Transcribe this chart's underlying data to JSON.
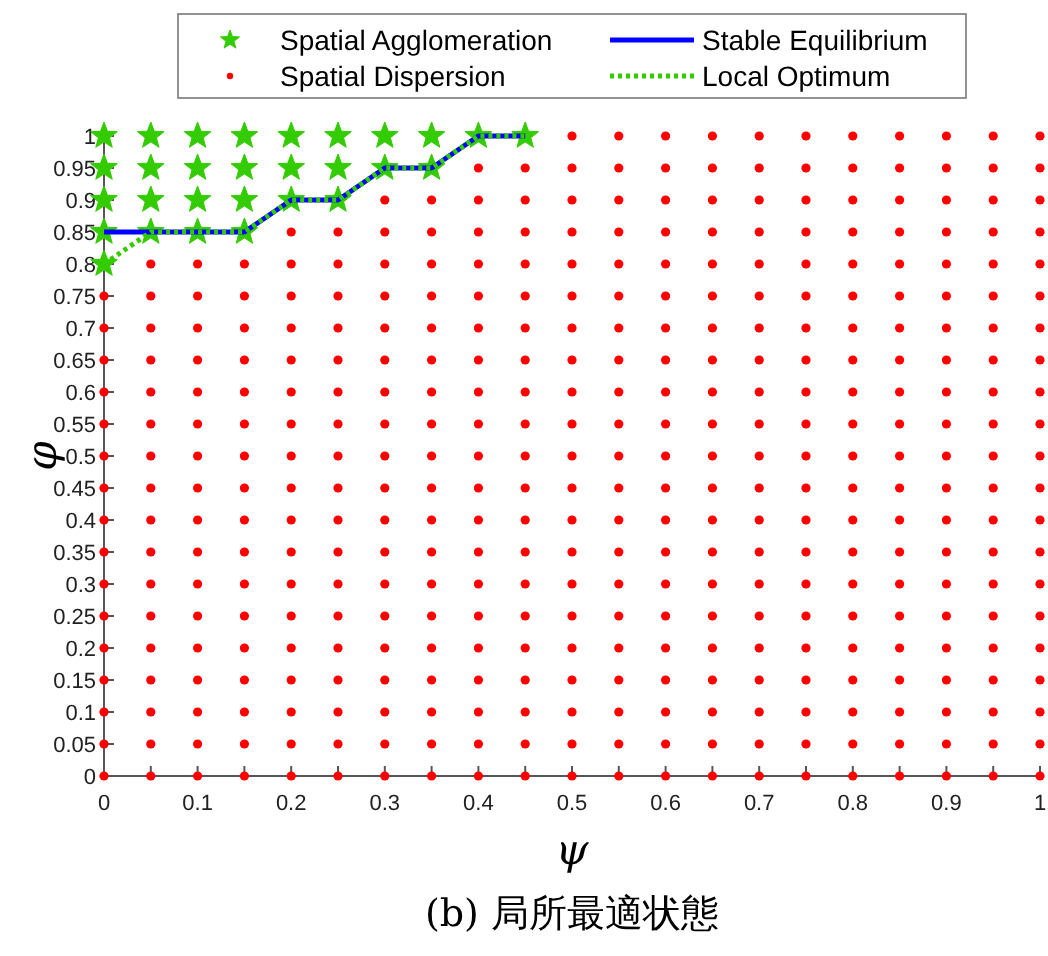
{
  "chart_data": {
    "type": "scatter",
    "title": "(b) 局所最適状態",
    "xlabel": "ψ",
    "ylabel": "φ",
    "xlim": [
      0,
      1
    ],
    "ylim": [
      0,
      1
    ],
    "xticks": [
      0,
      {
        "value": 0.05,
        "label": null
      },
      0.1,
      {
        "value": 0.15,
        "label": null
      },
      0.2,
      {
        "value": 0.25,
        "label": null
      },
      0.3,
      {
        "value": 0.35,
        "label": null
      },
      0.4,
      {
        "value": 0.45,
        "label": null
      },
      0.5,
      {
        "value": 0.55,
        "label": null
      },
      0.6,
      {
        "value": 0.65,
        "label": null
      },
      0.7,
      {
        "value": 0.75,
        "label": null
      },
      0.8,
      {
        "value": 0.85,
        "label": null
      },
      0.9,
      {
        "value": 0.95,
        "label": null
      },
      1
    ],
    "yticks": [
      0,
      0.05,
      0.1,
      0.15,
      0.2,
      0.25,
      0.3,
      0.35,
      0.4,
      0.45,
      0.5,
      0.55,
      0.6,
      0.65,
      0.7,
      0.75,
      0.8,
      0.85,
      0.9,
      0.95,
      1
    ],
    "legend": "top",
    "series": [
      {
        "name": "Spatial Agglomeration",
        "type": "scatter",
        "marker": "star",
        "color": "#33cc00",
        "x": [
          0,
          0,
          0,
          0,
          0,
          0.05,
          0.05,
          0.05,
          0.05,
          0.1,
          0.1,
          0.1,
          0.1,
          0.15,
          0.15,
          0.15,
          0.15,
          0.2,
          0.2,
          0.2,
          0.25,
          0.25,
          0.25,
          0.3,
          0.3,
          0.35,
          0.35,
          0.4,
          0.45
        ],
        "values": [
          0.8,
          0.85,
          0.9,
          0.95,
          1,
          0.85,
          0.9,
          0.95,
          1,
          0.85,
          0.9,
          0.95,
          1,
          0.85,
          0.9,
          0.95,
          1,
          0.9,
          0.95,
          1,
          0.9,
          0.95,
          1,
          0.95,
          1,
          0.95,
          1,
          1,
          1
        ]
      },
      {
        "name": "Spatial Dispersion",
        "type": "scatter",
        "marker": "circle",
        "color": "#ff0000",
        "x": [
          0,
          0,
          0,
          0,
          0,
          0,
          0,
          0,
          0,
          0,
          0,
          0,
          0,
          0,
          0,
          0,
          0.05,
          0.05,
          0.05,
          0.05,
          0.05,
          0.05,
          0.05,
          0.05,
          0.05,
          0.05,
          0.05,
          0.05,
          0.05,
          0.05,
          0.05,
          0.05,
          0.05,
          0.1,
          0.1,
          0.1,
          0.1,
          0.1,
          0.1,
          0.1,
          0.1,
          0.1,
          0.1,
          0.1,
          0.1,
          0.1,
          0.1,
          0.1,
          0.1,
          0.1,
          0.15,
          0.15,
          0.15,
          0.15,
          0.15,
          0.15,
          0.15,
          0.15,
          0.15,
          0.15,
          0.15,
          0.15,
          0.15,
          0.15,
          0.15,
          0.15,
          0.15,
          0.2,
          0.2,
          0.2,
          0.2,
          0.2,
          0.2,
          0.2,
          0.2,
          0.2,
          0.2,
          0.2,
          0.2,
          0.2,
          0.2,
          0.2,
          0.2,
          0.2,
          0.2,
          0.25,
          0.25,
          0.25,
          0.25,
          0.25,
          0.25,
          0.25,
          0.25,
          0.25,
          0.25,
          0.25,
          0.25,
          0.25,
          0.25,
          0.25,
          0.25,
          0.25,
          0.25,
          0.3,
          0.3,
          0.3,
          0.3,
          0.3,
          0.3,
          0.3,
          0.3,
          0.3,
          0.3,
          0.3,
          0.3,
          0.3,
          0.3,
          0.3,
          0.3,
          0.3,
          0.3,
          0.3,
          0.35,
          0.35,
          0.35,
          0.35,
          0.35,
          0.35,
          0.35,
          0.35,
          0.35,
          0.35,
          0.35,
          0.35,
          0.35,
          0.35,
          0.35,
          0.35,
          0.35,
          0.35,
          0.35,
          0.4,
          0.4,
          0.4,
          0.4,
          0.4,
          0.4,
          0.4,
          0.4,
          0.4,
          0.4,
          0.4,
          0.4,
          0.4,
          0.4,
          0.4,
          0.4,
          0.4,
          0.4,
          0.4,
          0.4,
          0.45,
          0.45,
          0.45,
          0.45,
          0.45,
          0.45,
          0.45,
          0.45,
          0.45,
          0.45,
          0.45,
          0.45,
          0.45,
          0.45,
          0.45,
          0.45,
          0.45,
          0.45,
          0.45,
          0.45,
          0.5,
          0.5,
          0.5,
          0.5,
          0.5,
          0.5,
          0.5,
          0.5,
          0.5,
          0.5,
          0.5,
          0.5,
          0.5,
          0.5,
          0.5,
          0.5,
          0.5,
          0.5,
          0.5,
          0.5,
          0.5,
          0.55,
          0.55,
          0.55,
          0.55,
          0.55,
          0.55,
          0.55,
          0.55,
          0.55,
          0.55,
          0.55,
          0.55,
          0.55,
          0.55,
          0.55,
          0.55,
          0.55,
          0.55,
          0.55,
          0.55,
          0.55,
          0.6,
          0.6,
          0.6,
          0.6,
          0.6,
          0.6,
          0.6,
          0.6,
          0.6,
          0.6,
          0.6,
          0.6,
          0.6,
          0.6,
          0.6,
          0.6,
          0.6,
          0.6,
          0.6,
          0.6,
          0.6,
          0.65,
          0.65,
          0.65,
          0.65,
          0.65,
          0.65,
          0.65,
          0.65,
          0.65,
          0.65,
          0.65,
          0.65,
          0.65,
          0.65,
          0.65,
          0.65,
          0.65,
          0.65,
          0.65,
          0.65,
          0.65,
          0.7,
          0.7,
          0.7,
          0.7,
          0.7,
          0.7,
          0.7,
          0.7,
          0.7,
          0.7,
          0.7,
          0.7,
          0.7,
          0.7,
          0.7,
          0.7,
          0.7,
          0.7,
          0.7,
          0.7,
          0.7,
          0.75,
          0.75,
          0.75,
          0.75,
          0.75,
          0.75,
          0.75,
          0.75,
          0.75,
          0.75,
          0.75,
          0.75,
          0.75,
          0.75,
          0.75,
          0.75,
          0.75,
          0.75,
          0.75,
          0.75,
          0.75,
          0.8,
          0.8,
          0.8,
          0.8,
          0.8,
          0.8,
          0.8,
          0.8,
          0.8,
          0.8,
          0.8,
          0.8,
          0.8,
          0.8,
          0.8,
          0.8,
          0.8,
          0.8,
          0.8,
          0.8,
          0.8,
          0.85,
          0.85,
          0.85,
          0.85,
          0.85,
          0.85,
          0.85,
          0.85,
          0.85,
          0.85,
          0.85,
          0.85,
          0.85,
          0.85,
          0.85,
          0.85,
          0.85,
          0.85,
          0.85,
          0.85,
          0.85,
          0.9,
          0.9,
          0.9,
          0.9,
          0.9,
          0.9,
          0.9,
          0.9,
          0.9,
          0.9,
          0.9,
          0.9,
          0.9,
          0.9,
          0.9,
          0.9,
          0.9,
          0.9,
          0.9,
          0.9,
          0.9,
          0.95,
          0.95,
          0.95,
          0.95,
          0.95,
          0.95,
          0.95,
          0.95,
          0.95,
          0.95,
          0.95,
          0.95,
          0.95,
          0.95,
          0.95,
          0.95,
          0.95,
          0.95,
          0.95,
          0.95,
          0.95,
          1,
          1,
          1,
          1,
          1,
          1,
          1,
          1,
          1,
          1,
          1,
          1,
          1,
          1,
          1,
          1,
          1,
          1,
          1,
          1,
          1
        ],
        "values": [
          0,
          0.05,
          0.1,
          0.15,
          0.2,
          0.25,
          0.3,
          0.35,
          0.4,
          0.45,
          0.5,
          0.55,
          0.6,
          0.65,
          0.7,
          0.75,
          0,
          0.05,
          0.1,
          0.15,
          0.2,
          0.25,
          0.3,
          0.35,
          0.4,
          0.45,
          0.5,
          0.55,
          0.6,
          0.65,
          0.7,
          0.75,
          0.8,
          0,
          0.05,
          0.1,
          0.15,
          0.2,
          0.25,
          0.3,
          0.35,
          0.4,
          0.45,
          0.5,
          0.55,
          0.6,
          0.65,
          0.7,
          0.75,
          0.8,
          0,
          0.05,
          0.1,
          0.15,
          0.2,
          0.25,
          0.3,
          0.35,
          0.4,
          0.45,
          0.5,
          0.55,
          0.6,
          0.65,
          0.7,
          0.75,
          0.8,
          0,
          0.05,
          0.1,
          0.15,
          0.2,
          0.25,
          0.3,
          0.35,
          0.4,
          0.45,
          0.5,
          0.55,
          0.6,
          0.65,
          0.7,
          0.75,
          0.8,
          0.85,
          0,
          0.05,
          0.1,
          0.15,
          0.2,
          0.25,
          0.3,
          0.35,
          0.4,
          0.45,
          0.5,
          0.55,
          0.6,
          0.65,
          0.7,
          0.75,
          0.8,
          0.85,
          0,
          0.05,
          0.1,
          0.15,
          0.2,
          0.25,
          0.3,
          0.35,
          0.4,
          0.45,
          0.5,
          0.55,
          0.6,
          0.65,
          0.7,
          0.75,
          0.8,
          0.85,
          0.9,
          0,
          0.05,
          0.1,
          0.15,
          0.2,
          0.25,
          0.3,
          0.35,
          0.4,
          0.45,
          0.5,
          0.55,
          0.6,
          0.65,
          0.7,
          0.75,
          0.8,
          0.85,
          0.9,
          0,
          0.05,
          0.1,
          0.15,
          0.2,
          0.25,
          0.3,
          0.35,
          0.4,
          0.45,
          0.5,
          0.55,
          0.6,
          0.65,
          0.7,
          0.75,
          0.8,
          0.85,
          0.9,
          0.95,
          0,
          0.05,
          0.1,
          0.15,
          0.2,
          0.25,
          0.3,
          0.35,
          0.4,
          0.45,
          0.5,
          0.55,
          0.6,
          0.65,
          0.7,
          0.75,
          0.8,
          0.85,
          0.9,
          0.95,
          0,
          0.05,
          0.1,
          0.15,
          0.2,
          0.25,
          0.3,
          0.35,
          0.4,
          0.45,
          0.5,
          0.55,
          0.6,
          0.65,
          0.7,
          0.75,
          0.8,
          0.85,
          0.9,
          0.95,
          1,
          0,
          0.05,
          0.1,
          0.15,
          0.2,
          0.25,
          0.3,
          0.35,
          0.4,
          0.45,
          0.5,
          0.55,
          0.6,
          0.65,
          0.7,
          0.75,
          0.8,
          0.85,
          0.9,
          0.95,
          1,
          0,
          0.05,
          0.1,
          0.15,
          0.2,
          0.25,
          0.3,
          0.35,
          0.4,
          0.45,
          0.5,
          0.55,
          0.6,
          0.65,
          0.7,
          0.75,
          0.8,
          0.85,
          0.9,
          0.95,
          1,
          0,
          0.05,
          0.1,
          0.15,
          0.2,
          0.25,
          0.3,
          0.35,
          0.4,
          0.45,
          0.5,
          0.55,
          0.6,
          0.65,
          0.7,
          0.75,
          0.8,
          0.85,
          0.9,
          0.95,
          1,
          0,
          0.05,
          0.1,
          0.15,
          0.2,
          0.25,
          0.3,
          0.35,
          0.4,
          0.45,
          0.5,
          0.55,
          0.6,
          0.65,
          0.7,
          0.75,
          0.8,
          0.85,
          0.9,
          0.95,
          1,
          0,
          0.05,
          0.1,
          0.15,
          0.2,
          0.25,
          0.3,
          0.35,
          0.4,
          0.45,
          0.5,
          0.55,
          0.6,
          0.65,
          0.7,
          0.75,
          0.8,
          0.85,
          0.9,
          0.95,
          1,
          0,
          0.05,
          0.1,
          0.15,
          0.2,
          0.25,
          0.3,
          0.35,
          0.4,
          0.45,
          0.5,
          0.55,
          0.6,
          0.65,
          0.7,
          0.75,
          0.8,
          0.85,
          0.9,
          0.95,
          1,
          0,
          0.05,
          0.1,
          0.15,
          0.2,
          0.25,
          0.3,
          0.35,
          0.4,
          0.45,
          0.5,
          0.55,
          0.6,
          0.65,
          0.7,
          0.75,
          0.8,
          0.85,
          0.9,
          0.95,
          1,
          0,
          0.05,
          0.1,
          0.15,
          0.2,
          0.25,
          0.3,
          0.35,
          0.4,
          0.45,
          0.5,
          0.55,
          0.6,
          0.65,
          0.7,
          0.75,
          0.8,
          0.85,
          0.9,
          0.95,
          1,
          0,
          0.05,
          0.1,
          0.15,
          0.2,
          0.25,
          0.3,
          0.35,
          0.4,
          0.45,
          0.5,
          0.55,
          0.6,
          0.65,
          0.7,
          0.75,
          0.8,
          0.85,
          0.9,
          0.95,
          1,
          0,
          0.05,
          0.1,
          0.15,
          0.2,
          0.25,
          0.3,
          0.35,
          0.4,
          0.45,
          0.5,
          0.55,
          0.6,
          0.65,
          0.7,
          0.75,
          0.8,
          0.85,
          0.9,
          0.95,
          1
        ]
      },
      {
        "name": "Stable Equilibrium",
        "type": "line",
        "line_style": "solid",
        "color": "#0000ff",
        "x": [
          0,
          0.05,
          0.1,
          0.15,
          0.2,
          0.25,
          0.3,
          0.35,
          0.4,
          0.45
        ],
        "values": [
          0.85,
          0.85,
          0.85,
          0.85,
          0.9,
          0.9,
          0.95,
          0.95,
          1,
          1
        ]
      },
      {
        "name": "Local Optimum",
        "type": "line",
        "line_style": "dotted",
        "color": "#33cc00",
        "x": [
          0,
          0.05,
          0.1,
          0.15,
          0.2,
          0.25,
          0.3,
          0.35,
          0.4,
          0.45
        ],
        "values": [
          0.8,
          0.85,
          0.85,
          0.85,
          0.9,
          0.9,
          0.95,
          0.95,
          1,
          1
        ]
      }
    ]
  }
}
